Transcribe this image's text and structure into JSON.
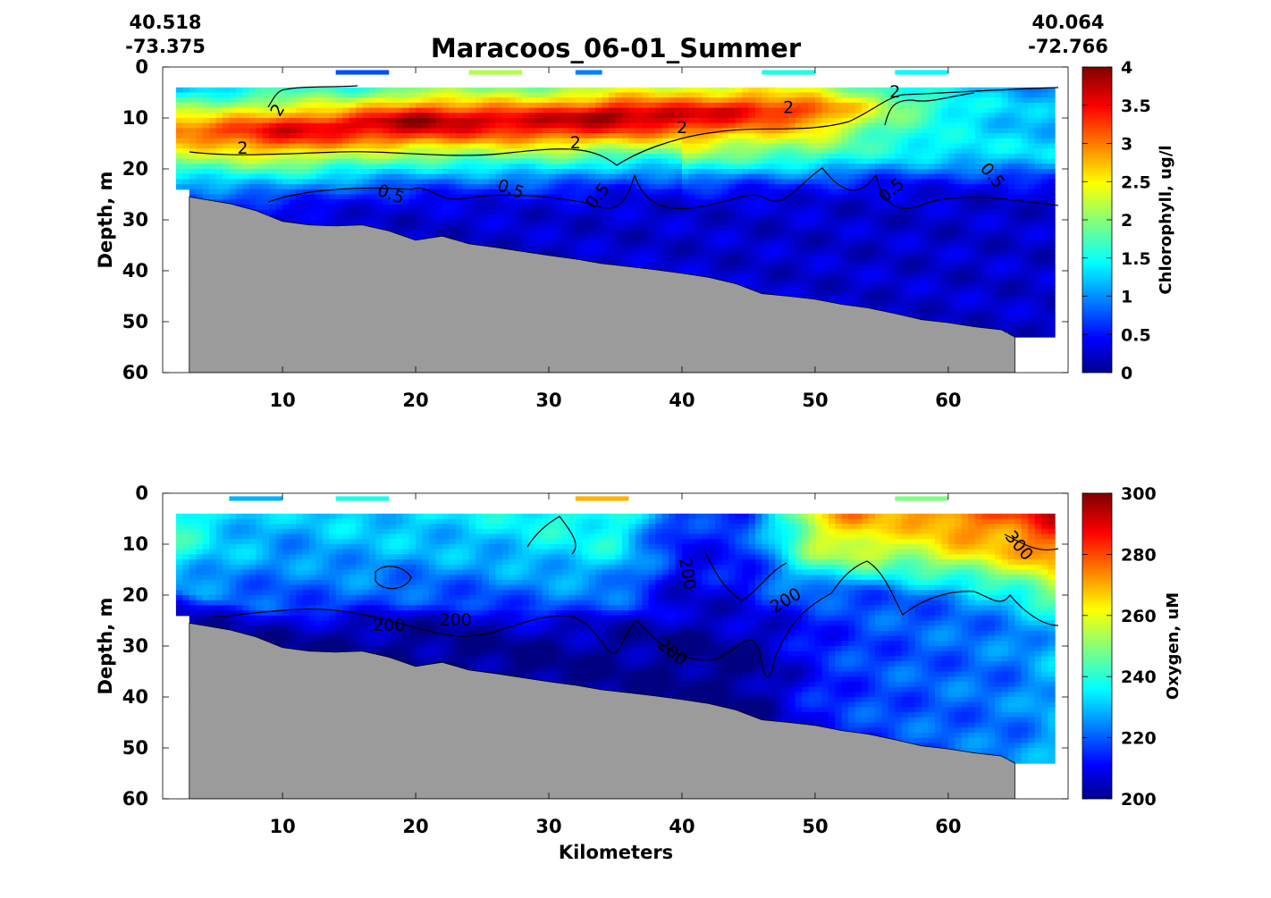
{
  "figure": {
    "title": "Maracoos_06-01_Summer",
    "start_lat": "40.518",
    "start_lon": "-73.375",
    "end_lat": "40.064",
    "end_lon": "-72.766",
    "xlabel": "Kilometers"
  },
  "chart_data": [
    {
      "type": "heatmap",
      "xlabel": "",
      "ylabel": "Depth, m",
      "colorbar_label": "Chlorophyll, ug/l",
      "xlim": [
        1,
        69
      ],
      "ylim": [
        60,
        0
      ],
      "x_ticks": [
        10,
        20,
        30,
        40,
        50,
        60
      ],
      "y_ticks": [
        0,
        10,
        20,
        30,
        40,
        50,
        60
      ],
      "clim": [
        0,
        4
      ],
      "colorbar_ticks": [
        "0",
        "0.5",
        "1",
        "1.5",
        "2",
        "2.5",
        "3",
        "3.5",
        "4"
      ],
      "colormap": "jet",
      "contour_levels": [
        "2",
        "0.5"
      ],
      "contour_labels": [
        "2",
        "2",
        "2",
        "2",
        "2",
        "2",
        "0.5",
        "0.5",
        "0.5",
        "0.5",
        "0.5"
      ],
      "bathymetry_color": "#9b9b9b",
      "profile": {
        "km": [
          2,
          5,
          10,
          15,
          20,
          25,
          30,
          35,
          40,
          45,
          50,
          55,
          60,
          65,
          68
        ],
        "surface_mean": [
          0.9,
          1.0,
          1.2,
          1.1,
          1.4,
          1.4,
          1.5,
          1.6,
          1.8,
          1.9,
          1.8,
          1.3,
          1.2,
          1.0,
          1.0
        ],
        "max_value": [
          3.1,
          3.2,
          3.6,
          3.6,
          3.9,
          3.7,
          3.7,
          3.9,
          3.7,
          3.5,
          3.2,
          2.2,
          1.6,
          1.3,
          1.2
        ],
        "max_depth_m": [
          12,
          12,
          12,
          11,
          10,
          10,
          10,
          9,
          9,
          8,
          8,
          7,
          7,
          7,
          7
        ],
        "deep_value": [
          0.3,
          0.4,
          0.3,
          0.3,
          0.3,
          0.3,
          0.3,
          0.3,
          0.3,
          0.3,
          0.3,
          0.3,
          0.3,
          0.3,
          0.3
        ]
      }
    },
    {
      "type": "heatmap",
      "xlabel": "Kilometers",
      "ylabel": "Depth, m",
      "colorbar_label": "Oxygen, uM",
      "xlim": [
        1,
        69
      ],
      "ylim": [
        60,
        0
      ],
      "x_ticks": [
        10,
        20,
        30,
        40,
        50,
        60
      ],
      "y_ticks": [
        0,
        10,
        20,
        30,
        40,
        50,
        60
      ],
      "clim": [
        200,
        300
      ],
      "colorbar_ticks": [
        "200",
        "220",
        "240",
        "260",
        "280",
        "300"
      ],
      "colormap": "jet",
      "contour_levels": [
        "200",
        "300"
      ],
      "contour_labels": [
        "200",
        "200",
        "200",
        "200",
        "200",
        "300"
      ],
      "bathymetry_color": "#9b9b9b",
      "profile": {
        "km": [
          2,
          5,
          10,
          15,
          20,
          25,
          30,
          35,
          40,
          45,
          50,
          53,
          56,
          60,
          65,
          68
        ],
        "upper_value": [
          248,
          238,
          233,
          236,
          237,
          238,
          243,
          246,
          218,
          222,
          270,
          282,
          276,
          285,
          290,
          300
        ],
        "lower_value": [
          226,
          222,
          218,
          220,
          218,
          218,
          220,
          220,
          205,
          208,
          222,
          224,
          222,
          225,
          232,
          240
        ],
        "deep_value": [
          202,
          202,
          201,
          201,
          201,
          201,
          201,
          202,
          201,
          201,
          214,
          218,
          220,
          222,
          224,
          230
        ],
        "mix_depth_m": [
          19,
          21,
          23,
          22,
          22,
          22,
          23,
          22,
          25,
          26,
          20,
          18,
          20,
          20,
          22,
          23
        ]
      }
    }
  ],
  "bathymetry": {
    "km": [
      3,
      6,
      8,
      10,
      12,
      14,
      16,
      18,
      20,
      22,
      24,
      26,
      28,
      30,
      32,
      34,
      36,
      38,
      40,
      42,
      44,
      46,
      48,
      50,
      52,
      54,
      56,
      58,
      60,
      62,
      64,
      65
    ],
    "depth_m": [
      25.5,
      26.8,
      28.2,
      30.3,
      31.0,
      31.2,
      31.0,
      32.2,
      34.0,
      33.2,
      34.7,
      35.4,
      36.2,
      37.0,
      37.7,
      38.6,
      39.2,
      39.8,
      40.5,
      41.3,
      42.5,
      44.5,
      45.0,
      45.6,
      46.6,
      47.3,
      48.4,
      49.6,
      50.2,
      51.0,
      51.6,
      53.0
    ]
  }
}
